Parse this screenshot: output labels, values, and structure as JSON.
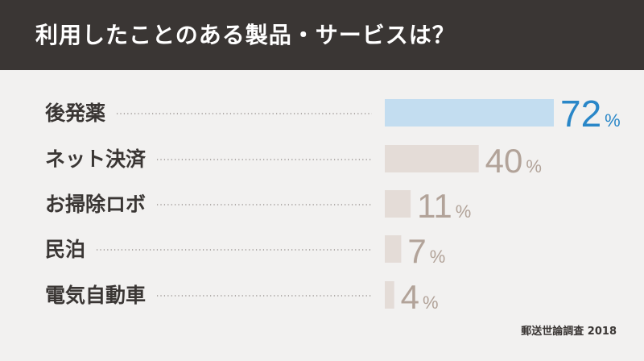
{
  "header": {
    "title": "利用したことのある製品・サービスは？"
  },
  "source": "郵送世論調査 2018",
  "colors": {
    "header_bg": "#3a3634",
    "background": "#f2f1f0",
    "highlight_bar": "#c3ddf0",
    "highlight_text": "#2a87c8",
    "bar": "#e4dcd7",
    "value_text": "#b2a399",
    "label_text": "#3a3634",
    "leader_dots": "#8a8480"
  },
  "chart_data": {
    "type": "bar",
    "orientation": "horizontal",
    "title": "利用したことのある製品・サービスは？",
    "categories": [
      "後発薬",
      "ネット決済",
      "お掃除ロボ",
      "民泊",
      "電気自動車"
    ],
    "values": [
      72,
      40,
      11,
      7,
      4
    ],
    "unit": "%",
    "highlight_index": 0,
    "xlim": [
      0,
      100
    ]
  }
}
